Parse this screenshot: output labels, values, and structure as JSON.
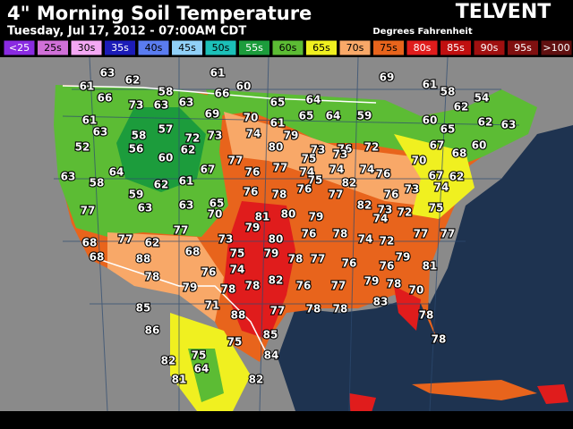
{
  "header": {
    "title": "4\" Morning Soil Temperature",
    "subtitle": "Tuesday, Jul 17, 2012 - 07:00AM CDT",
    "brand": "TELVENT",
    "units": "Degrees Fahrenheit"
  },
  "legend": [
    {
      "label": "<25",
      "color": "#8a2be2"
    },
    {
      "label": "25s",
      "color": "#d070d8"
    },
    {
      "label": "30s",
      "color": "#f4a8f4"
    },
    {
      "label": "35s",
      "color": "#1c1cb8"
    },
    {
      "label": "40s",
      "color": "#5a7cf0"
    },
    {
      "label": "45s",
      "color": "#90d0f8"
    },
    {
      "label": "50s",
      "color": "#1cc0b8"
    },
    {
      "label": "55s",
      "color": "#1c9c3c"
    },
    {
      "label": "60s",
      "color": "#5cbc34"
    },
    {
      "label": "65s",
      "color": "#f0f020"
    },
    {
      "label": "70s",
      "color": "#f8a868"
    },
    {
      "label": "75s",
      "color": "#e8641c"
    },
    {
      "label": "80s",
      "color": "#e01c1c"
    },
    {
      "label": "85s",
      "color": "#c01010"
    },
    {
      "label": "90s",
      "color": "#a01010"
    },
    {
      "label": "95s",
      "color": "#801010"
    },
    {
      "label": ">100",
      "color": "#601010"
    }
  ],
  "stations": [
    63,
    61,
    69,
    62,
    60,
    61,
    58,
    61,
    66,
    58,
    66,
    54,
    73,
    63,
    63,
    65,
    64,
    62,
    61,
    69,
    70,
    61,
    65,
    64,
    59,
    60,
    62,
    63,
    63,
    58,
    57,
    72,
    73,
    74,
    79,
    65,
    52,
    56,
    62,
    80,
    73,
    76,
    72,
    67,
    60,
    60,
    77,
    75,
    73,
    70,
    68,
    63,
    64,
    67,
    76,
    77,
    74,
    74,
    74,
    76,
    67,
    62,
    58,
    62,
    61,
    75,
    82,
    73,
    59,
    76,
    78,
    76,
    77,
    76,
    74,
    77,
    63,
    63,
    65,
    82,
    73,
    72,
    75,
    70,
    81,
    80,
    79,
    74,
    79,
    76,
    78,
    77,
    68,
    77,
    62,
    77,
    73,
    80,
    74,
    72,
    77,
    68,
    88,
    68,
    75,
    79,
    78,
    77,
    76,
    76,
    79,
    74,
    76,
    78,
    82,
    76,
    77,
    79,
    78,
    81,
    70,
    79,
    78,
    78,
    85,
    71,
    88,
    77,
    78,
    78,
    83,
    78,
    86,
    75,
    85,
    78,
    82,
    75,
    64,
    84,
    81,
    82
  ]
}
